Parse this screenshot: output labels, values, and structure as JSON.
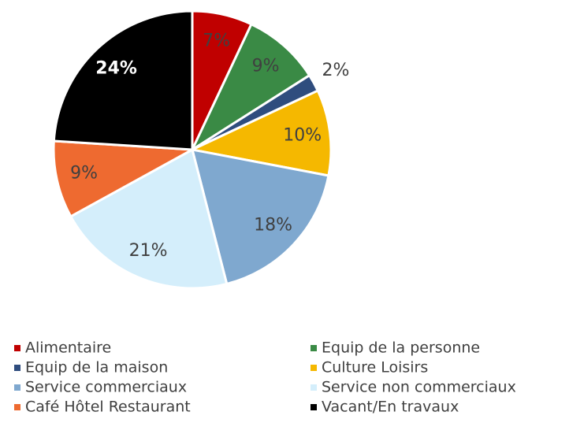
{
  "chart_data": {
    "type": "pie",
    "categories": [
      "Alimentaire",
      "Equip de la personne",
      "Equip de la maison",
      "Culture Loisirs",
      "Service commerciaux",
      "Service non commerciaux",
      "Café Hôtel Restaurant",
      "Vacant/En travaux"
    ],
    "values": [
      7,
      9,
      2,
      10,
      18,
      21,
      9,
      24
    ],
    "value_labels": [
      "7%",
      "9%",
      "2%",
      "10%",
      "18%",
      "21%",
      "9%",
      "24%"
    ],
    "colors": [
      "#c00000",
      "#3a8a45",
      "#2f4d7e",
      "#f5b800",
      "#7fa8cf",
      "#d4eefb",
      "#ee6a30",
      "#000000"
    ],
    "label_colors": [
      "#404040",
      "#404040",
      "#404040",
      "#404040",
      "#404040",
      "#404040",
      "#404040",
      "#ffffff"
    ],
    "legend": "bottom"
  }
}
